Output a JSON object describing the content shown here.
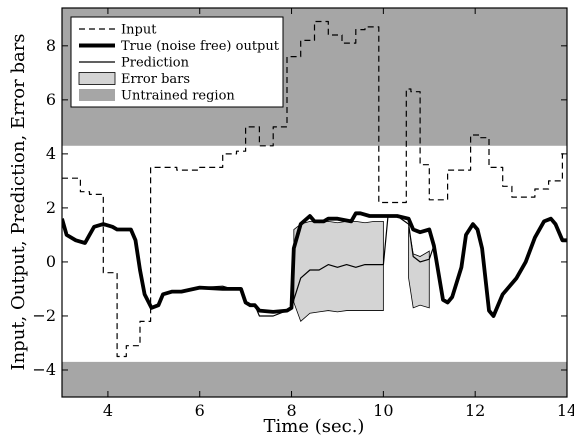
{
  "chart_data": {
    "type": "line",
    "xlabel": "Time (sec.)",
    "ylabel": "Input, Output, Prediction, Error bars",
    "xlim": [
      3,
      14
    ],
    "ylim": [
      -5,
      9.4
    ],
    "xticks": [
      4,
      6,
      8,
      10,
      12,
      14
    ],
    "yticks": [
      -4,
      -2,
      0,
      2,
      4,
      6,
      8
    ],
    "grid": false,
    "legend_position": "top-left",
    "legend": [
      {
        "label": "Input",
        "style": "dashed"
      },
      {
        "label": "True (noise free) output",
        "style": "thick"
      },
      {
        "label": "Prediction",
        "style": "thin"
      },
      {
        "label": "Error bars",
        "style": "light-fill"
      },
      {
        "label": "Untrained region",
        "style": "dark-fill"
      }
    ],
    "untrained_regions": [
      {
        "y_from": 4.3,
        "y_to": 9.4
      },
      {
        "y_from": -5,
        "y_to": -3.7
      }
    ],
    "series": [
      {
        "name": "Input",
        "x": [
          3,
          3.4,
          3.4,
          3.6,
          3.6,
          3.9,
          3.9,
          4.2,
          4.2,
          4.4,
          4.4,
          4.7,
          4.7,
          4.93,
          4.93,
          5.2,
          5.2,
          5.5,
          5.5,
          6.0,
          6.0,
          6.5,
          6.5,
          6.8,
          6.8,
          7.0,
          7.0,
          7.3,
          7.3,
          7.6,
          7.6,
          7.9,
          7.9,
          8.2,
          8.2,
          8.5,
          8.5,
          8.8,
          8.8,
          9.1,
          9.1,
          9.4,
          9.4,
          9.6,
          9.6,
          9.9,
          9.9,
          10.1,
          10.1,
          10.5,
          10.5,
          10.6,
          10.6,
          10.8,
          10.8,
          11.0,
          11.0,
          11.4,
          11.4,
          11.9,
          11.9,
          12.1,
          12.1,
          12.3,
          12.3,
          12.6,
          12.6,
          12.8,
          12.8,
          13.3,
          13.3,
          13.6,
          13.6,
          13.9,
          13.9,
          14
        ],
        "values": [
          3.1,
          3.1,
          2.6,
          2.6,
          2.5,
          2.5,
          -0.4,
          -0.4,
          -3.5,
          -3.5,
          -3.1,
          -3.1,
          -2.2,
          -2.2,
          3.5,
          3.5,
          3.5,
          3.5,
          3.4,
          3.4,
          3.5,
          3.5,
          4.0,
          4.0,
          4.1,
          4.1,
          5.0,
          5.0,
          4.3,
          4.3,
          5.0,
          5.0,
          7.6,
          7.6,
          8.2,
          8.2,
          8.9,
          8.9,
          8.4,
          8.4,
          8.1,
          8.1,
          8.6,
          8.6,
          8.7,
          8.7,
          2.2,
          2.2,
          2.2,
          2.2,
          6.4,
          6.4,
          6.3,
          6.3,
          3.6,
          3.6,
          2.3,
          2.3,
          3.4,
          3.4,
          4.7,
          4.7,
          4.6,
          4.6,
          3.5,
          3.5,
          2.8,
          2.8,
          2.4,
          2.4,
          2.7,
          2.7,
          3.0,
          3.0,
          4.0,
          4.0
        ]
      },
      {
        "name": "True (noise free) output",
        "x": [
          3,
          3.1,
          3.3,
          3.5,
          3.6,
          3.7,
          3.9,
          4.1,
          4.2,
          4.5,
          4.6,
          4.7,
          4.8,
          4.95,
          5.1,
          5.2,
          5.4,
          5.6,
          6.0,
          6.5,
          6.7,
          6.9,
          7.0,
          7.1,
          7.2,
          7.3,
          7.6,
          7.9,
          8.0,
          8.05,
          8.2,
          8.4,
          8.5,
          8.7,
          8.8,
          9.0,
          9.3,
          9.4,
          9.5,
          9.7,
          10.0,
          10.1,
          10.2,
          10.3,
          10.55,
          10.65,
          10.8,
          11.0,
          11.1,
          11.3,
          11.4,
          11.5,
          11.7,
          11.8,
          11.95,
          12.05,
          12.15,
          12.3,
          12.4,
          12.6,
          12.9,
          13.1,
          13.3,
          13.5,
          13.65,
          13.75,
          13.9,
          14
        ],
        "values": [
          1.6,
          1.0,
          0.8,
          0.7,
          1.0,
          1.3,
          1.4,
          1.3,
          1.2,
          1.2,
          0.8,
          -0.3,
          -1.2,
          -1.7,
          -1.6,
          -1.2,
          -1.1,
          -1.1,
          -0.95,
          -1.0,
          -1.0,
          -1.0,
          -1.5,
          -1.6,
          -1.6,
          -1.8,
          -1.85,
          -1.8,
          -1.7,
          0.5,
          1.4,
          1.7,
          1.5,
          1.5,
          1.6,
          1.6,
          1.5,
          1.8,
          1.8,
          1.7,
          1.7,
          1.7,
          1.7,
          1.7,
          1.6,
          1.2,
          1.1,
          1.2,
          0.6,
          -1.4,
          -1.5,
          -1.3,
          -0.2,
          1.0,
          1.4,
          1.2,
          0.5,
          -1.8,
          -2.0,
          -1.2,
          -0.6,
          0.0,
          0.9,
          1.5,
          1.6,
          1.4,
          0.8,
          0.8
        ]
      },
      {
        "name": "Prediction",
        "x": [
          3,
          3.1,
          3.3,
          3.5,
          3.6,
          3.7,
          3.9,
          4.1,
          4.2,
          4.5,
          4.6,
          4.7,
          4.8,
          4.95,
          5.1,
          5.2,
          5.4,
          5.6,
          6.0,
          6.5,
          6.7,
          6.9,
          7.0,
          7.1,
          7.2,
          7.3,
          7.6,
          7.9,
          8.0,
          8.05,
          8.2,
          8.4,
          8.6,
          8.8,
          9.0,
          9.2,
          9.4,
          9.6,
          9.8,
          10.0,
          10.1,
          10.2,
          10.3,
          10.55,
          10.65,
          10.8,
          11.0,
          11.1,
          11.3,
          11.4,
          11.5,
          11.7,
          11.8,
          11.95,
          12.05,
          12.15,
          12.3,
          12.4,
          12.6,
          12.9,
          13.1,
          13.3,
          13.5,
          13.65,
          13.75,
          13.9,
          14
        ],
        "values": [
          1.6,
          1.0,
          0.8,
          0.7,
          1.0,
          1.3,
          1.4,
          1.3,
          1.2,
          1.2,
          0.8,
          -0.3,
          -1.2,
          -1.7,
          -1.6,
          -1.2,
          -1.1,
          -1.1,
          -0.95,
          -0.9,
          -1.0,
          -1.0,
          -1.5,
          -1.6,
          -1.6,
          -2.0,
          -2.0,
          -1.8,
          -1.7,
          -1.4,
          -0.6,
          -0.3,
          -0.3,
          -0.1,
          -0.2,
          -0.1,
          -0.2,
          -0.1,
          -0.1,
          -0.1,
          1.7,
          1.7,
          1.7,
          1.4,
          0.2,
          0.0,
          0.1,
          0.6,
          -1.4,
          -1.5,
          -1.3,
          -0.2,
          1.0,
          1.4,
          1.2,
          0.5,
          -1.8,
          -2.0,
          -1.2,
          -0.6,
          0.0,
          0.9,
          1.5,
          1.6,
          1.4,
          0.8,
          0.8
        ]
      }
    ],
    "error_bars": [
      {
        "x": [
          8.05,
          8.2,
          8.4,
          8.6,
          8.8,
          9.0,
          9.2,
          9.4,
          9.6,
          9.8,
          10.0
        ],
        "upper": [
          1.2,
          1.4,
          1.5,
          1.45,
          1.5,
          1.45,
          1.5,
          1.5,
          1.45,
          1.5,
          1.5
        ],
        "lower": [
          -1.5,
          -2.2,
          -1.9,
          -1.85,
          -1.8,
          -1.85,
          -1.8,
          -1.8,
          -1.8,
          -1.8,
          -1.8
        ]
      },
      {
        "x": [
          10.55,
          10.65,
          10.8,
          11.0
        ],
        "upper": [
          1.3,
          0.3,
          0.2,
          0.4
        ],
        "lower": [
          -0.6,
          -1.7,
          -1.6,
          -1.7
        ]
      }
    ],
    "colors": {
      "untrained": "#a6a6a6",
      "error_fill": "#d4d4d4",
      "line": "#000000"
    }
  }
}
